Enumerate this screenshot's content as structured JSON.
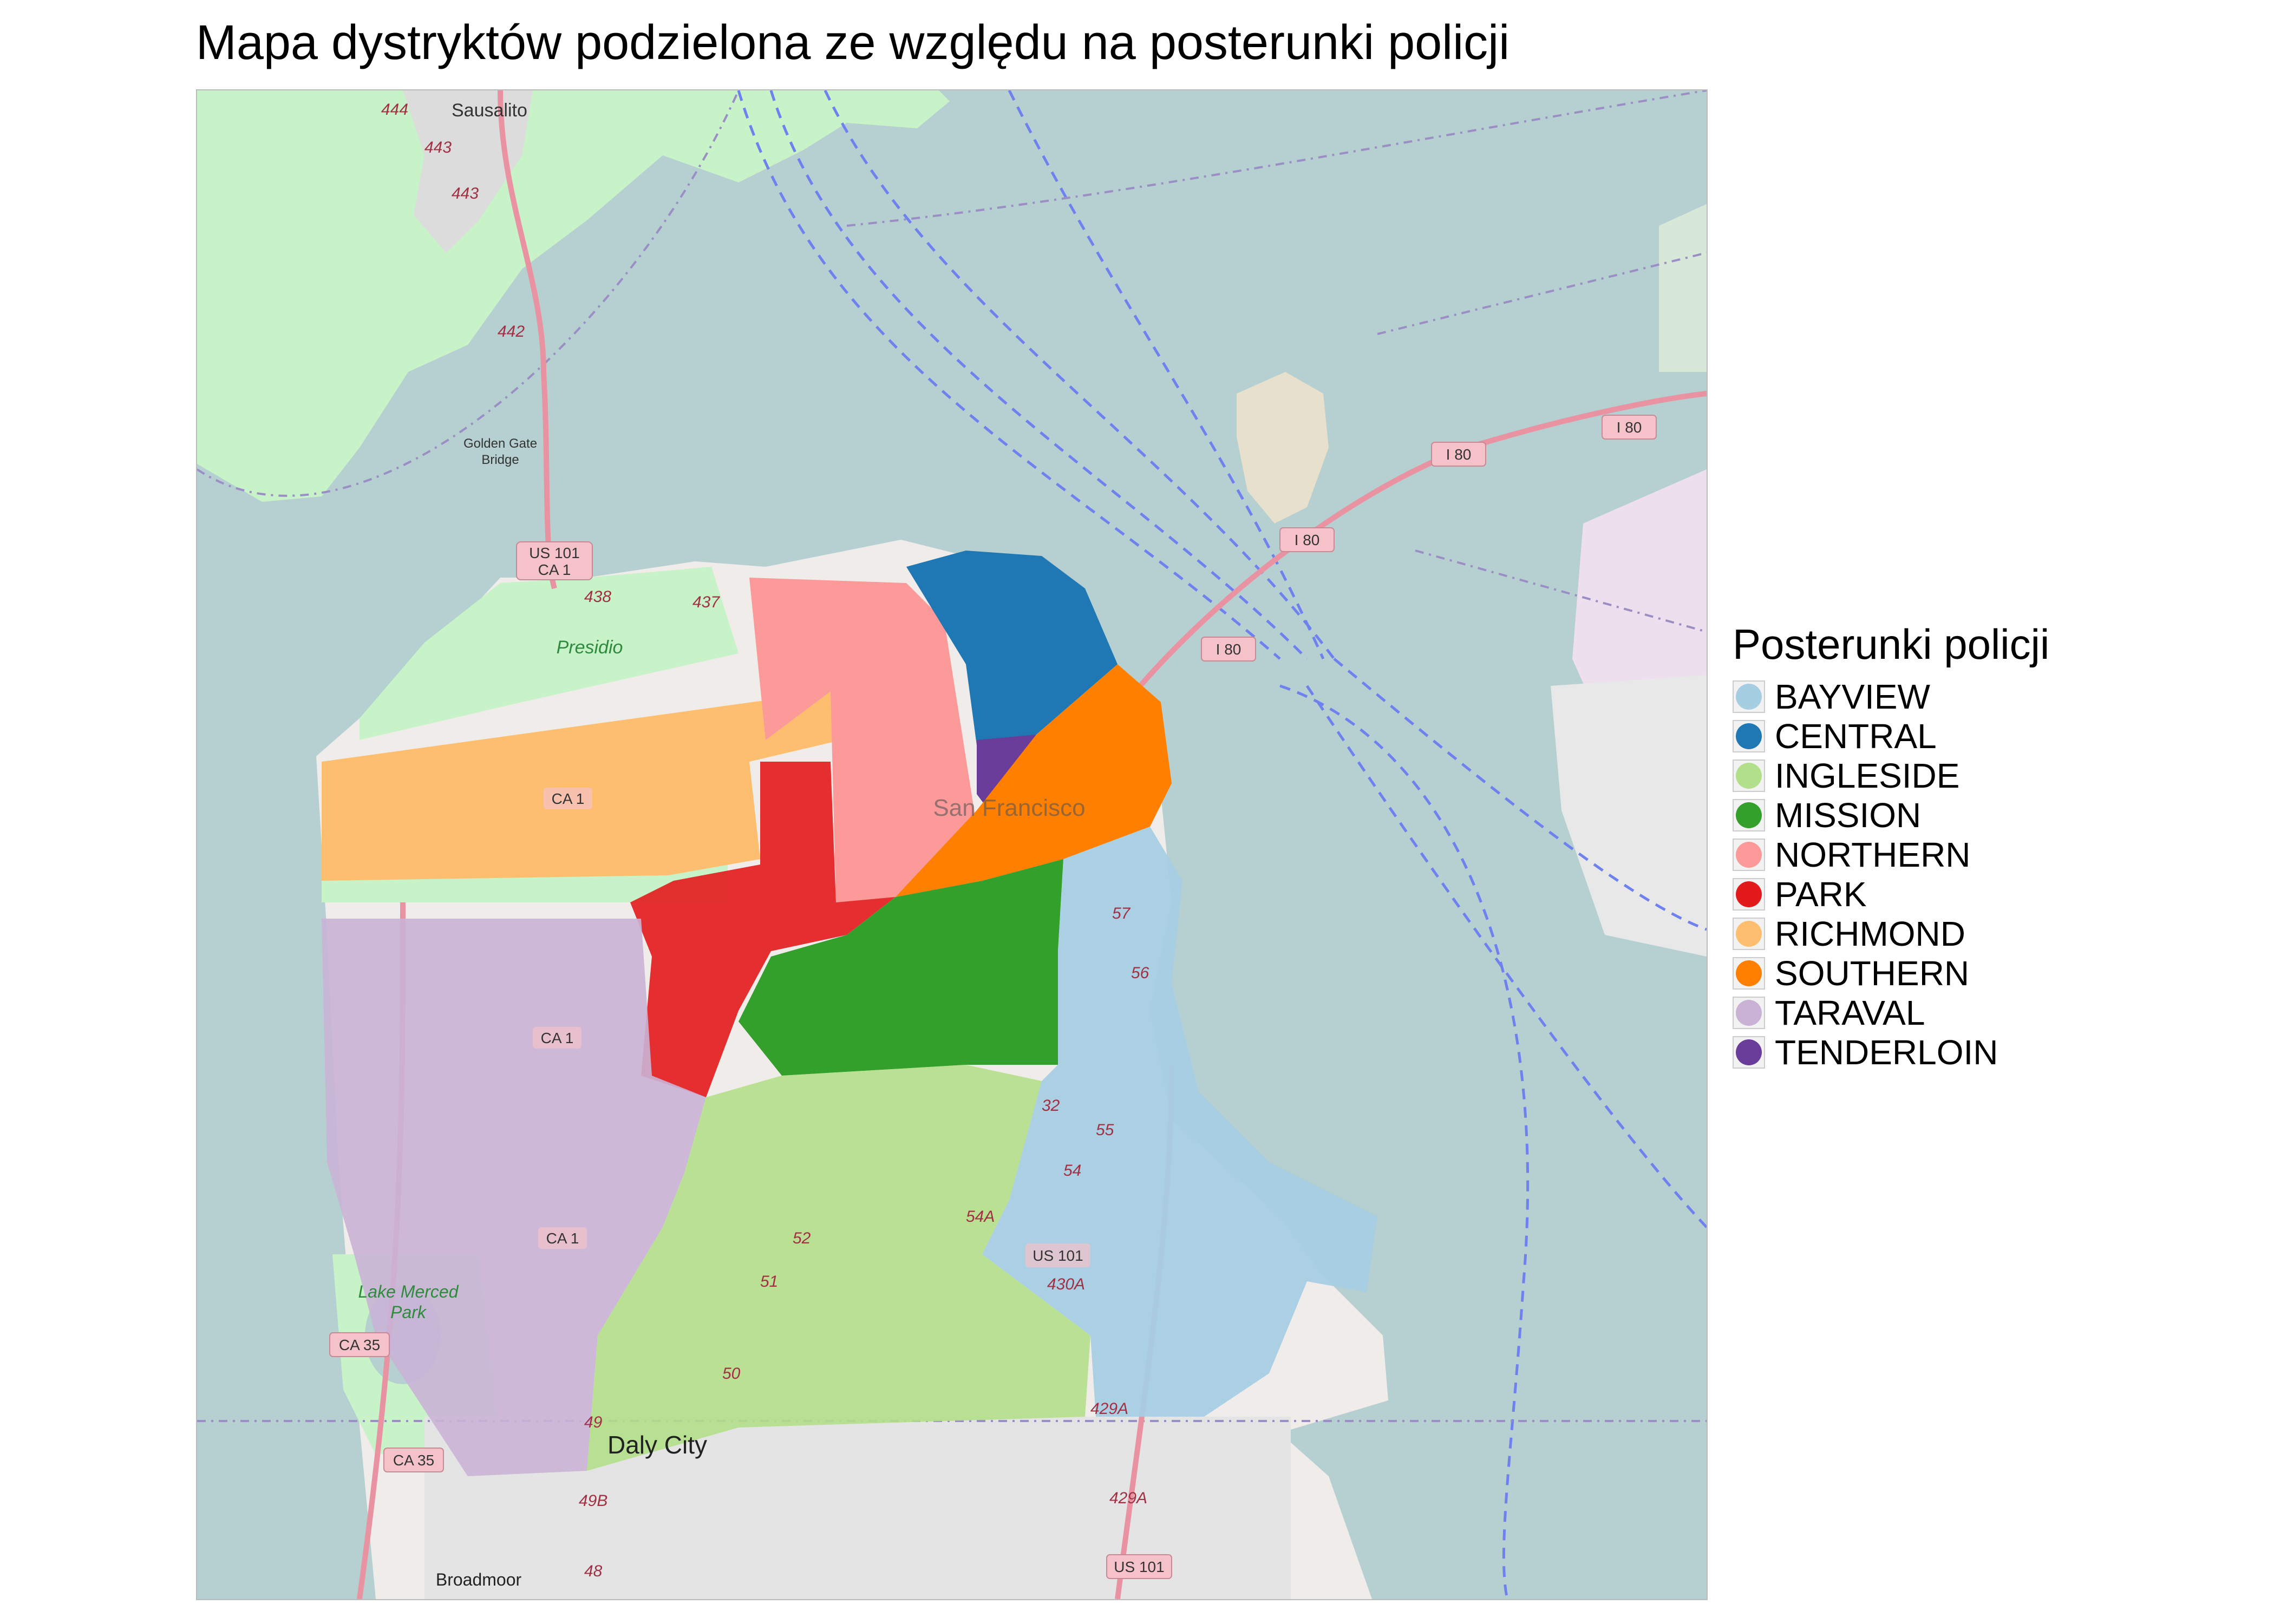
{
  "title": "Mapa dystryktów podzielona ze względu na posterunki policji",
  "legend": {
    "title": "Posterunki policji",
    "items": [
      {
        "name": "BAYVIEW",
        "color": "#a6cee3"
      },
      {
        "name": "CENTRAL",
        "color": "#1f78b4"
      },
      {
        "name": "INGLESIDE",
        "color": "#b2df8a"
      },
      {
        "name": "MISSION",
        "color": "#33a02c"
      },
      {
        "name": "NORTHERN",
        "color": "#fb9a99"
      },
      {
        "name": "PARK",
        "color": "#e31a1c"
      },
      {
        "name": "RICHMOND",
        "color": "#fdbf6f"
      },
      {
        "name": "SOUTHERN",
        "color": "#ff7f00"
      },
      {
        "name": "TARAVAL",
        "color": "#cab2d6"
      },
      {
        "name": "TENDERLOIN",
        "color": "#6a3d9a"
      }
    ]
  },
  "basemap_labels": {
    "sausalito": "Sausalito",
    "golden_gate_1": "Golden Gate",
    "golden_gate_2": "Bridge",
    "presidio": "Presidio",
    "san_francisco": "San Francisco",
    "lake_merced_1": "Lake Merced",
    "lake_merced_2": "Park",
    "daly_city": "Daly City",
    "broadmoor": "Broadmoor",
    "us101_a": "US 101",
    "ca1_a": "CA 1",
    "ca1_b": "CA 1",
    "ca1_c": "CA 1",
    "ca1_d": "CA 1",
    "ca35_a": "CA 35",
    "ca35_b": "CA 35",
    "i80_a": "I 80",
    "i80_b": "I 80",
    "i80_c": "I 80",
    "i80_d": "I 80",
    "us101_b": "US 101",
    "us101_c": "US 101",
    "x444": "444",
    "x443a": "443",
    "x443b": "443",
    "x442": "442",
    "x438": "438",
    "x437": "437",
    "x57": "57",
    "x56": "56",
    "x55": "55",
    "x54": "54",
    "x54a": "54A",
    "x52": "52",
    "x51": "51",
    "x50": "50",
    "x49": "49",
    "x49b": "49B",
    "x48": "48",
    "x430a": "430A",
    "x429a_a": "429A",
    "x429a_b": "429A",
    "x32": "32"
  }
}
